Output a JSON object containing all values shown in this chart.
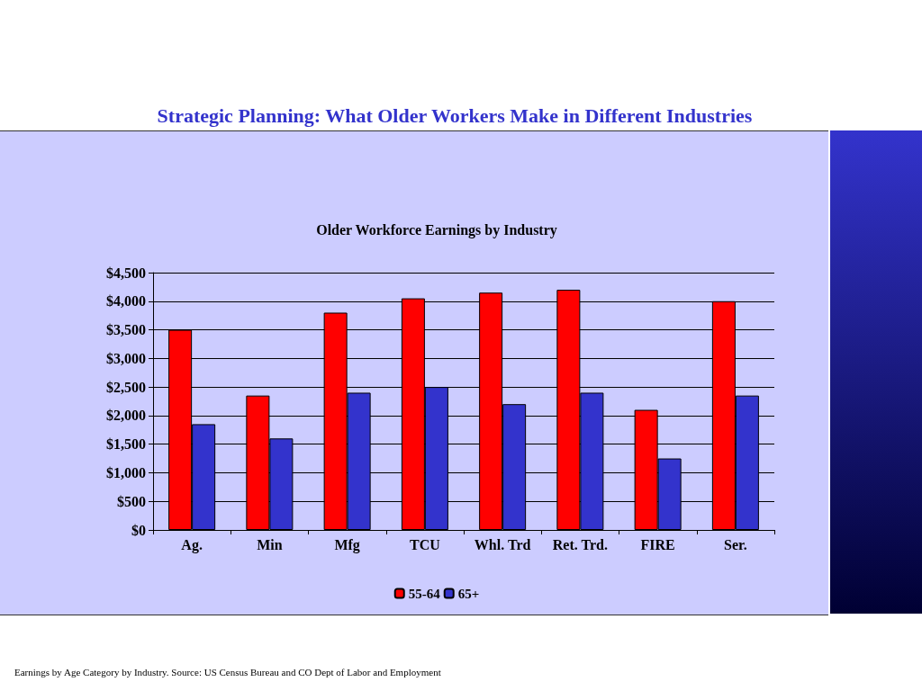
{
  "chart_data": {
    "type": "bar",
    "title": "Strategic Planning: What Older Workers Make in Different Industries",
    "subtitle": "Older Workforce Earnings by Industry",
    "categories": [
      "Ag.",
      "Min",
      "Mfg",
      "TCU",
      "Whl. Trd",
      "Ret. Trd.",
      "FIRE",
      "Ser."
    ],
    "series": [
      {
        "name": "55-64",
        "color": "#ff0000",
        "values": [
          3500,
          2350,
          3800,
          4050,
          4150,
          4200,
          2100,
          4000
        ]
      },
      {
        "name": "65+",
        "color": "#3333cc",
        "values": [
          1850,
          1600,
          2400,
          2500,
          2200,
          2400,
          1250,
          2350
        ]
      }
    ],
    "ylim": [
      0,
      4500
    ],
    "yticks": [
      {
        "value": 0,
        "label": "$0"
      },
      {
        "value": 500,
        "label": "$500"
      },
      {
        "value": 1000,
        "label": "$1,000"
      },
      {
        "value": 1500,
        "label": "$1,500"
      },
      {
        "value": 2000,
        "label": "$2,000"
      },
      {
        "value": 2500,
        "label": "$2,500"
      },
      {
        "value": 3000,
        "label": "$3,000"
      },
      {
        "value": 3500,
        "label": "$3,500"
      },
      {
        "value": 4000,
        "label": "$4,000"
      },
      {
        "value": 4500,
        "label": "$4,500"
      }
    ],
    "grid": "y",
    "legend": "bottom",
    "annotations": [
      "Earnings by Age Category by Industry. Source: US Census Bureau and CO Dept of Labor and Employment"
    ]
  }
}
